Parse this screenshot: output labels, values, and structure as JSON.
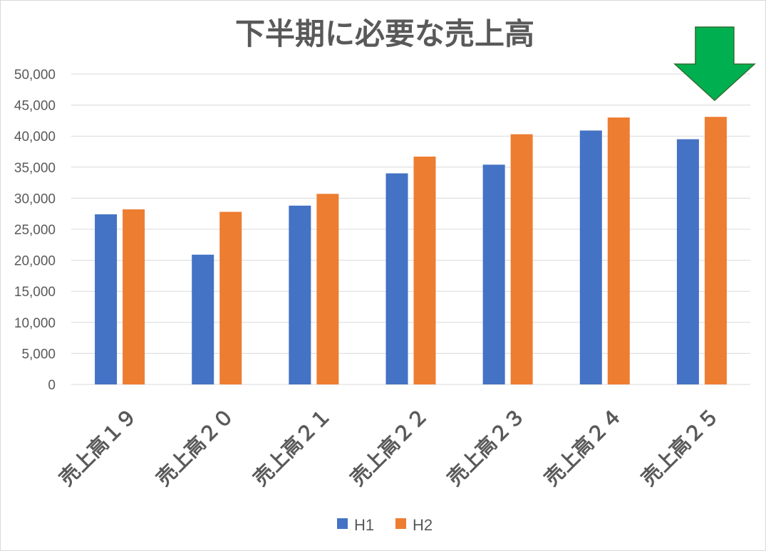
{
  "chart_data": {
    "type": "bar",
    "title": "下半期に必要な売上高",
    "categories": [
      "売上高１９",
      "売上高２０",
      "売上高２１",
      "売上高２２",
      "売上高２３",
      "売上高２４",
      "売上高２５"
    ],
    "series": [
      {
        "name": "H1",
        "color": "#4472c4",
        "values": [
          27400,
          20900,
          28800,
          34000,
          35400,
          40900,
          39500
        ]
      },
      {
        "name": "H2",
        "color": "#ed7d31",
        "values": [
          28200,
          27800,
          30700,
          36700,
          40300,
          43000,
          43100
        ]
      }
    ],
    "yticks": [
      "0",
      "5,000",
      "10,000",
      "15,000",
      "20,000",
      "25,000",
      "30,000",
      "35,000",
      "40,000",
      "45,000",
      "50,000"
    ],
    "ylim": [
      0,
      50000
    ],
    "grid": true,
    "legend": "bottom",
    "annotation": {
      "type": "arrow",
      "direction": "down",
      "target_category": "売上高２５",
      "color": "#00b050"
    }
  }
}
